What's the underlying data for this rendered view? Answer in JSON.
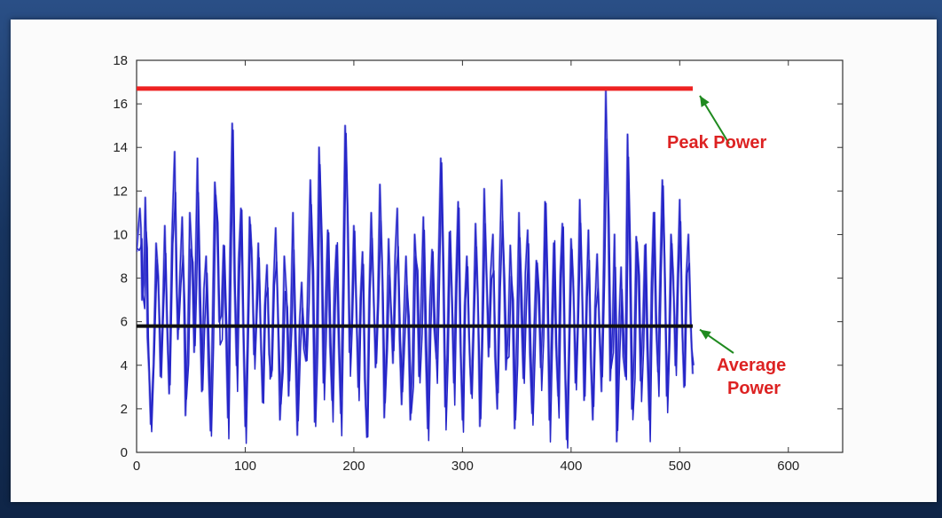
{
  "chart_data": {
    "type": "line",
    "xlim": [
      0,
      650
    ],
    "ylim": [
      0,
      18
    ],
    "xticks": [
      0,
      100,
      200,
      300,
      400,
      500,
      600
    ],
    "yticks": [
      0,
      2,
      4,
      6,
      8,
      10,
      12,
      14,
      16,
      18
    ],
    "grid": false,
    "colors": {
      "signal": "#2626c8",
      "signal_light": "#8f8fe6",
      "peak": "#ee2222",
      "average": "#101010",
      "arrow": "#1f8a1f",
      "annotation_text": "#dd2222"
    },
    "peak_power": {
      "y": 16.7,
      "x_range": [
        0,
        512
      ]
    },
    "average_power": {
      "y": 5.8,
      "x_range": [
        0,
        512
      ]
    },
    "series": [
      {
        "x_range": [
          0,
          512
        ],
        "peaks": [
          [
            0,
            9.2
          ],
          [
            3,
            11.2
          ],
          [
            5,
            7.0
          ],
          [
            8,
            11.7
          ],
          [
            10,
            5.3
          ],
          [
            13,
            1.3
          ],
          [
            18,
            9.6
          ],
          [
            22,
            3.5
          ],
          [
            26,
            10.4
          ],
          [
            30,
            2.7
          ],
          [
            35,
            13.8
          ],
          [
            38,
            5.2
          ],
          [
            42,
            10.8
          ],
          [
            45,
            1.7
          ],
          [
            49,
            11.0
          ],
          [
            53,
            4.6
          ],
          [
            56,
            13.5
          ],
          [
            60,
            2.8
          ],
          [
            64,
            9.0
          ],
          [
            68,
            1.0
          ],
          [
            72,
            12.4
          ],
          [
            76,
            6.0
          ],
          [
            80,
            9.5
          ],
          [
            84,
            1.6
          ],
          [
            88,
            15.1
          ],
          [
            92,
            4.0
          ],
          [
            96,
            11.2
          ],
          [
            100,
            1.2
          ],
          [
            104,
            10.8
          ],
          [
            108,
            4.5
          ],
          [
            112,
            9.6
          ],
          [
            116,
            2.3
          ],
          [
            120,
            8.6
          ],
          [
            124,
            3.5
          ],
          [
            128,
            10.3
          ],
          [
            132,
            1.5
          ],
          [
            136,
            9.0
          ],
          [
            140,
            2.6
          ],
          [
            144,
            11.0
          ],
          [
            148,
            0.8
          ],
          [
            152,
            7.8
          ],
          [
            156,
            4.2
          ],
          [
            160,
            12.5
          ],
          [
            164,
            1.4
          ],
          [
            168,
            14.0
          ],
          [
            172,
            3.2
          ],
          [
            176,
            10.2
          ],
          [
            180,
            2.4
          ],
          [
            184,
            9.5
          ],
          [
            188,
            1.8
          ],
          [
            192,
            15.0
          ],
          [
            196,
            4.6
          ],
          [
            200,
            10.4
          ],
          [
            204,
            3.0
          ],
          [
            208,
            9.2
          ],
          [
            212,
            0.7
          ],
          [
            216,
            11.0
          ],
          [
            220,
            3.9
          ],
          [
            224,
            12.3
          ],
          [
            228,
            1.6
          ],
          [
            232,
            9.8
          ],
          [
            236,
            4.1
          ],
          [
            240,
            11.2
          ],
          [
            244,
            2.2
          ],
          [
            248,
            9.0
          ],
          [
            252,
            1.5
          ],
          [
            256,
            10.0
          ],
          [
            260,
            3.5
          ],
          [
            264,
            10.8
          ],
          [
            268,
            1.1
          ],
          [
            272,
            9.3
          ],
          [
            276,
            4.3
          ],
          [
            280,
            13.5
          ],
          [
            284,
            2.1
          ],
          [
            288,
            10.1
          ],
          [
            292,
            3.2
          ],
          [
            296,
            11.5
          ],
          [
            300,
            1.5
          ],
          [
            304,
            9.0
          ],
          [
            308,
            2.7
          ],
          [
            312,
            10.5
          ],
          [
            316,
            1.2
          ],
          [
            320,
            12.1
          ],
          [
            324,
            4.4
          ],
          [
            328,
            10.0
          ],
          [
            332,
            2.0
          ],
          [
            336,
            12.5
          ],
          [
            340,
            3.8
          ],
          [
            344,
            9.5
          ],
          [
            348,
            1.1
          ],
          [
            352,
            11.0
          ],
          [
            356,
            3.4
          ],
          [
            360,
            10.2
          ],
          [
            364,
            1.8
          ],
          [
            368,
            8.8
          ],
          [
            372,
            3.9
          ],
          [
            376,
            11.5
          ],
          [
            380,
            1.5
          ],
          [
            384,
            9.6
          ],
          [
            388,
            2.6
          ],
          [
            392,
            10.5
          ],
          [
            396,
            0.6
          ],
          [
            400,
            9.8
          ],
          [
            404,
            3.2
          ],
          [
            408,
            11.6
          ],
          [
            412,
            2.4
          ],
          [
            416,
            10.2
          ],
          [
            420,
            1.5
          ],
          [
            424,
            9.1
          ],
          [
            428,
            2.8
          ],
          [
            432,
            16.6
          ],
          [
            436,
            3.3
          ],
          [
            440,
            10.0
          ],
          [
            442,
            0.5
          ],
          [
            446,
            8.5
          ],
          [
            450,
            3.5
          ],
          [
            452,
            14.6
          ],
          [
            456,
            2.0
          ],
          [
            460,
            9.9
          ],
          [
            464,
            3.3
          ],
          [
            468,
            9.5
          ],
          [
            472,
            1.5
          ],
          [
            476,
            11.0
          ],
          [
            480,
            3.7
          ],
          [
            484,
            12.5
          ],
          [
            488,
            2.6
          ],
          [
            492,
            10.0
          ],
          [
            496,
            4.0
          ],
          [
            500,
            11.6
          ],
          [
            504,
            3.0
          ],
          [
            508,
            10.0
          ],
          [
            512,
            3.6
          ]
        ]
      }
    ],
    "annotations": [
      {
        "id": "peak",
        "lines": [
          "Peak Power"
        ],
        "target": [
          512,
          16.7
        ]
      },
      {
        "id": "average",
        "lines": [
          "Average",
          "Power"
        ],
        "target": [
          512,
          5.8
        ]
      }
    ]
  }
}
